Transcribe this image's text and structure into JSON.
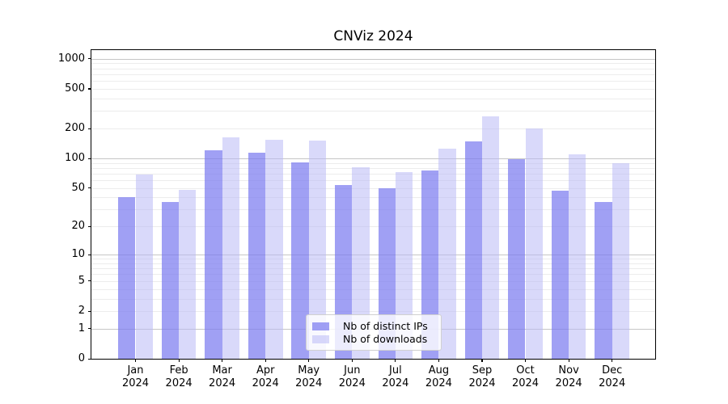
{
  "chart_data": {
    "type": "bar",
    "title": "CNViz 2024",
    "categories": [
      "Jan\n2024",
      "Feb\n2024",
      "Mar\n2024",
      "Apr\n2024",
      "May\n2024",
      "Jun\n2024",
      "Jul\n2024",
      "Aug\n2024",
      "Sep\n2024",
      "Oct\n2024",
      "Nov\n2024",
      "Dec\n2024"
    ],
    "series": [
      {
        "name": "Nb of distinct IPs",
        "color": "rgba(124,124,240,0.72)",
        "values": [
          40,
          36,
          120,
          113,
          91,
          54,
          50,
          75,
          148,
          98,
          47,
          36
        ]
      },
      {
        "name": "Nb of downloads",
        "color": "rgba(186,186,246,0.55)",
        "values": [
          69,
          48,
          164,
          155,
          152,
          82,
          73,
          126,
          267,
          200,
          110,
          90
        ]
      }
    ],
    "xlabel": "",
    "ylabel": "",
    "yscale": "log1p",
    "yticks": [
      0,
      1,
      2,
      5,
      10,
      20,
      50,
      100,
      200,
      500,
      1000
    ],
    "ylim": [
      0,
      1220
    ],
    "grid": "both",
    "legend_position": "lower center"
  },
  "colors": {
    "background": "#ffffff",
    "axis": "#000000",
    "major_grid": "#c6c6c6",
    "minor_grid": "#ececec",
    "legend_border": "#d0d0d0",
    "text": "#000000"
  }
}
